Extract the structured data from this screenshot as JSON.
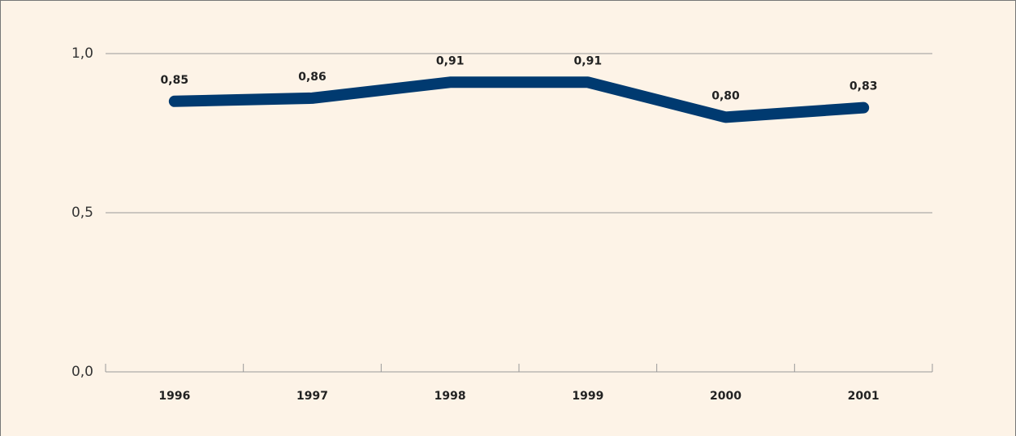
{
  "chart_data": {
    "type": "line",
    "categories": [
      "1996",
      "1997",
      "1998",
      "1999",
      "2000",
      "2001"
    ],
    "series": [
      {
        "name": null,
        "color": "#003a70",
        "values": [
          0.85,
          0.86,
          0.91,
          0.91,
          0.8,
          0.83
        ],
        "value_labels": [
          "0,85",
          "0,86",
          "0,91",
          "0,91",
          "0,80",
          "0,83"
        ]
      }
    ],
    "ylim": [
      0,
      1
    ],
    "yticks": [
      {
        "value": 0,
        "label": "0,0"
      },
      {
        "value": 0.5,
        "label": "0,5"
      },
      {
        "value": 1,
        "label": "1,0"
      }
    ],
    "grid": true
  }
}
